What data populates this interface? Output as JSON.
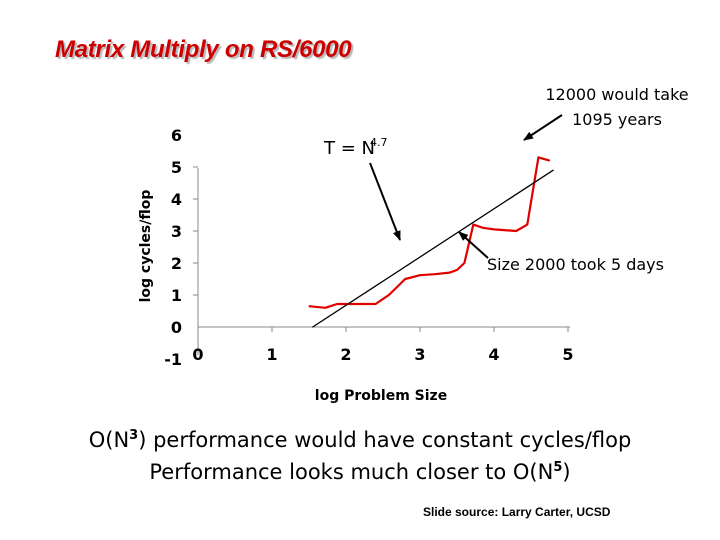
{
  "slide": {
    "title": "Matrix Multiply on RS/6000",
    "line1": {
      "prefix": "O(N",
      "exp": "3",
      "suffix": ") performance would have constant cycles/flop"
    },
    "line2": {
      "prefix": "Performance looks much closer to O(N",
      "exp": "5",
      "suffix": ")"
    },
    "credit": "Slide source: Larry Carter, UCSD"
  },
  "colors": {
    "title": "#cc0000",
    "measured_series": "#e00000",
    "fit_line": "#000000"
  },
  "chart_data": {
    "type": "line",
    "xlabel": "log Problem Size",
    "ylabel": "log cycles/flop",
    "x_ticks": [
      "0",
      "1",
      "2",
      "3",
      "4",
      "5"
    ],
    "y_ticks": [
      "-1",
      "0",
      "1",
      "2",
      "3",
      "4",
      "5",
      "6"
    ],
    "xlim": [
      0,
      5
    ],
    "ylim": [
      -1,
      6
    ],
    "grid": false,
    "series": [
      {
        "values": [
          [
            1.5,
            0.65
          ],
          [
            1.72,
            0.6
          ],
          [
            1.88,
            0.72
          ],
          [
            2.4,
            0.72
          ],
          [
            2.58,
            1.0
          ],
          [
            2.8,
            1.5
          ],
          [
            3.0,
            1.62
          ],
          [
            3.2,
            1.65
          ],
          [
            3.4,
            1.7
          ],
          [
            3.5,
            1.78
          ],
          [
            3.6,
            2.0
          ],
          [
            3.72,
            3.2
          ],
          [
            3.85,
            3.1
          ],
          [
            4.0,
            3.05
          ],
          [
            4.3,
            3.0
          ],
          [
            4.45,
            3.2
          ],
          [
            4.6,
            5.3
          ],
          [
            4.75,
            5.2
          ]
        ]
      },
      {
        "values": [
          [
            1.55,
            0.0
          ],
          [
            4.8,
            4.9
          ]
        ]
      }
    ],
    "annotations": {
      "equation_base": "T = N",
      "equation_exp": "4.7",
      "top_right_line1": "12000 would take",
      "top_right_line2": "1095 years",
      "size_note": "Size 2000 took 5 days"
    }
  }
}
